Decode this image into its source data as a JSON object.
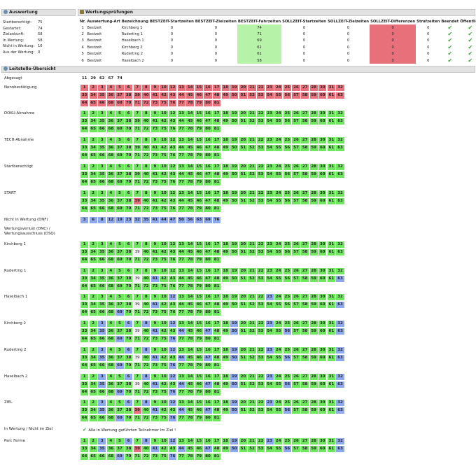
{
  "auswertung": {
    "title": "Auswertung",
    "items": [
      {
        "label": "Startberechtigt:",
        "value": "75"
      },
      {
        "label": "Gestartet:",
        "value": "74"
      },
      {
        "label": "Zielankunft:",
        "value": "58"
      },
      {
        "label": "In Wertung:",
        "value": "58"
      },
      {
        "label": "Nicht in Wertung:",
        "value": "16"
      },
      {
        "label": "Aus der Wertung:",
        "value": "0"
      }
    ]
  },
  "wertungspruefungen": {
    "title": "Wertungsprüfungen",
    "headers": [
      "Nr.",
      "Auswertung-Art",
      "Bezeichnung",
      "BESTZEIT-Startzeiten",
      "BESTZEIT-Zielzeiten",
      "BESTZEIT-Fahrzeiten",
      "SOLLZEIT-Startzeiten",
      "SOLLZEIT-Zielzeiten",
      "SOLLZEIT-Differenzen",
      "Strafzeiten",
      "Beendet",
      "Öffentlich"
    ],
    "rows": [
      {
        "nr": "1",
        "art": "Bestzeit",
        "name": "Kirchberg 1",
        "bs": "0",
        "bz": "0",
        "bf": "74",
        "ss": "0",
        "sz": "0",
        "sd": "0",
        "st": "0"
      },
      {
        "nr": "2",
        "art": "Bestzeit",
        "name": "Ruderting 1",
        "bs": "0",
        "bz": "0",
        "bf": "71",
        "ss": "0",
        "sz": "0",
        "sd": "0",
        "st": "0"
      },
      {
        "nr": "3",
        "art": "Bestzeit",
        "name": "Haselbach 1",
        "bs": "0",
        "bz": "0",
        "bf": "69",
        "ss": "0",
        "sz": "0",
        "sd": "0",
        "st": "0"
      },
      {
        "nr": "4",
        "art": "Bestzeit",
        "name": "Kirchberg 2",
        "bs": "0",
        "bz": "0",
        "bf": "61",
        "ss": "0",
        "sz": "0",
        "sd": "0",
        "st": "0"
      },
      {
        "nr": "5",
        "art": "Bestzeit",
        "name": "Ruderting 2",
        "bs": "0",
        "bz": "0",
        "bf": "61",
        "ss": "0",
        "sz": "0",
        "sd": "0",
        "st": "0"
      },
      {
        "nr": "6",
        "art": "Bestzeit",
        "name": "Haselbach 2",
        "bs": "0",
        "bz": "0",
        "bf": "58",
        "ss": "0",
        "sz": "0",
        "sd": "0",
        "st": "0"
      }
    ],
    "check_icon": "check-icon"
  },
  "leitstelle": {
    "title": "Leitstelle-Übersicht",
    "colors": {
      "green": "#6ee65e",
      "red": "#e8707a",
      "blue": "#8ea8ee",
      "cyan": "#7ad6ee",
      "white": "#f0f0f0"
    },
    "sections": [
      {
        "label": "Abgesagt",
        "y": 0,
        "cells": "11c 29c 62c 67c 74c"
      },
      {
        "label": "Nennbestätigung",
        "cells": "1r 2r 3r 4r 5r 6r 7r 8r 9r 10r 12r 13r 14r 15r 16r 17r 18r 19r 20r 21r 22r 23r 24r 25r 26r 27r 28r 30r 31r 32r 33r 34r 35r 36r 37r 38r 39r 40r 41r 42r 43r 44r 45r 46r 47r 48r 49r 50r 51r 52r 53r 54r 55r 56r 57r 58r 59r 60r 61r 63r 64r 65r 66r 68r 69r 70r 71r 72r 73r 75r 76r 77r 78r 79r 80r 81r"
      },
      {
        "label": "DOKU-Abnahme",
        "cells": "1g 2g 3g 4g 5g 6g 7g 8g 9g 10g 12g 13g 14g 15g 16g 17g 18g 19g 20g 21g 22g 23g 24g 25g 26g 27g 28g 30g 31g 32g 33g 34g 35g 36g 37g 38g 39g 40g 41g 42g 43g 44g 45g 46g 47g 48g 49g 50g 51g 52g 53g 54g 55g 56g 57g 58g 59g 60g 61g 63g 64g 65g 66g 68g 69g 70g 71g 72g 73g 75g 76g 77g 78g 79g 80g 81g"
      },
      {
        "label": "TECH-Abnahme",
        "cells": "1g 2g 3g 4g 5g 6g 7g 8g 9g 10g 12g 13g 14g 15g 16g 17g 18g 19g 20g 21g 22g 23g 24g 25g 26g 27g 28g 30g 31g 32g 33g 34g 35g 36g 37g 38g 39g 40g 41g 42g 43g 44g 45g 46g 47g 48g 49g 50g 51g 52g 53g 54g 55g 56g 57g 58g 59g 60g 61g 63g 64g 65g 66g 68g 69g 70g 71g 72g 73g 75g 76g 77g 78g 79g 80g 81g"
      },
      {
        "label": "Startberechtigt",
        "cells": "1g 2g 3g 4g 5g 6g 7g 8g 9g 10g 12g 13g 14g 15g 16g 17g 18g 19g 20g 21g 22g 23g 24g 25g 26g 27g 28g 30g 31g 32g 33g 34g 35g 36g 37g 38g 39g 40g 41g 42g 43g 44g 45g 46g 47g 48g 49g 50g 51g 52g 53g 54g 55g 56g 57g 58g 59g 60g 61g 63g 64g 65g 66g 68g 69g 70g 71g 72g 73g 75g 76g 77g 78g 79g 80g 81g"
      },
      {
        "label": "START",
        "cells": "1g 2g 3g 4g 5g 6g 7g 8g 9g 10g 12g 13g 14g 15g 16g 17g 18g 19g 20g 21g 22g 23g 24g 25g 26g 27g 28g 30g 31g 32g 33g 34g 35g 36g 37g 38g 39r 40g 41g 42g 43g 44g 45g 46g 47g 48g 49g 50g 51g 52g 53g 54g 55g 56g 57g 58g 59g 60g 61g 63g 64g 65g 66g 68g 69g 70g 71g 72g 73g 75g 76g 77g 78g 79g 80g 81g"
      },
      {
        "label": "Nicht in Wertung (DNF)",
        "cells": "3b 6b 8b 12b 19b 23b 32b 35b 41b 44b 47b 50b 56b 63b 69b 76b"
      },
      {
        "label": "Wertungsverlust (DNC) / Wertungsausschluss (DSQ)",
        "cells": ""
      },
      {
        "label": "Kirchberg 1",
        "cells": "1g 2g 3g 4g 5g 6g 7g 8g 9g 10g 12g 13g 14g 15g 16g 17g 18g 19g 20g 21g 22g 23g 24g 25g 26g 27g 28g 30g 31g 32g 33g 34g 35g 36g 37g 38g 39w 40g 41g 42g 43g 44g 45g 46g 47g 48g 49g 50g 51g 52g 53g 54g 55g 56g 57g 58g 59g 60g 61g 63g 64g 65g 66g 68g 69g 70g 71g 72g 73g 75g 76g 77g 78g 79g 80g 81g"
      },
      {
        "label": "Ruderting 1",
        "cells": "1g 2g 3g 4g 5g 6g 7g 8g 9g 10g 12g 13g 14g 15g 16g 17g 18g 19g 20g 21g 22g 23g 24g 25g 26g 27g 28g 30g 31g 32g 33g 34g 35g 36g 37g 38g 39w 40g 41b 42g 43g 44g 45g 46g 47g 48g 49g 50g 51g 52g 53g 54g 55g 56g 57g 58g 59g 60g 61g 63b 64g 65g 66g 68g 69g 70g 71g 72g 73g 75g 76g 77g 78g 79g 80g 81g"
      },
      {
        "label": "Haselbach 1",
        "cells": "1g 2g 3g 4g 5g 6g 7g 8g 9g 10g 12b 13g 14g 15g 16g 17g 18g 19g 20g 21g 22g 23b 24g 25g 26g 27g 28g 30g 31g 32g 33g 34g 35g 36g 37g 38g 39w 40g 41b 42g 43g 44g 45g 46g 47g 48g 49g 50g 51g 52g 53g 54g 55g 56g 57g 58g 59g 60g 61g 63b 64g 65g 66g 68g 69b 70g 71g 72g 73g 75g 76g 77g 78g 79g 80g 81g"
      },
      {
        "label": "Kirchberg 2",
        "cells": "1g 2g 3b 4g 5g 6b 7g 8b 9g 10g 12b 13g 14g 15g 16g 17g 18g 19b 20g 21g 22g 23b 24g 25g 26g 27g 28g 30g 31g 32b 33g 34g 35b 36g 37g 38g 39w 40g 41b 42g 43g 44b 45g 46g 47b 48g 49g 50b 51g 52g 53g 54g 55g 56b 57g 58g 59g 60g 61g 63b 64g 65g 66g 68g 69b 70g 71g 72g 73g 75g 76b 77g 78g 79g 80g 81g"
      },
      {
        "label": "Ruderting 2",
        "cells": "1g 2g 3b 4g 5g 6b 7g 8b 9g 10g 12b 13g 14g 15g 16g 17g 18g 19b 20g 21g 22g 23b 24g 25g 26g 27g 28g 30g 31g 32b 33g 34g 35b 36g 37g 38g 39w 40g 41b 42g 43g 44b 45g 46g 47b 48g 49g 50b 51g 52g 53g 54g 55g 56b 57g 58g 59g 60g 61g 63b 64g 65g 66g 68g 69b 70g 71g 72g 73g 75g 76b 77g 78g 79g 80g 81g"
      },
      {
        "label": "Haselbach 2",
        "cells": "1g 2g 3b 4g 5g 6b 7g 8b 9g 10g 12b 13g 14g 15g 16g 17g 18g 19b 20g 21g 22g 23b 24g 25g 26g 27g 28g 30g 31g 32b 33g 34g 35b 36g 37g 38g 39w 40g 41b 42g 43g 44b 45g 46g 47b 48g 49g 50b 51g 52g 53g 54g 55g 56b 57g 58g 59g 60g 61g 63b 64g 65g 66g 68g 69b 70g 71g 72g 73g 75g 76b 77g 78g 79g 80g 81g"
      },
      {
        "label": "ZIEL",
        "cells": "1g 2g 3b 4g 5g 6b 7g 8b 9g 10g 12b 13g 14g 15g 16g 17g 18g 19b 20g 21g 22g 23b 24g 25g 26g 27g 28g 30g 31g 32b 33g 34g 35b 36g 37g 38g 39r 40g 41b 42g 43g 44b 45g 46g 47b 48g 49g 50b 51g 52g 53g 54g 55g 56b 57g 58g 59g 60g 61g 63b 64g 65g 66g 68g 69b 70g 71g 72g 73g 75g 76b 77g 78g 79g 80g 81g"
      },
      {
        "label": "In Wertung / Nicht im Ziel",
        "cells": "",
        "note": "Alle in Wertung geführten Teilnehmer im Ziel !"
      },
      {
        "label": "Parc Ferme",
        "cells": "1g 2g 3b 4g 5g 6b 7g 8b 9g 10g 12b 13g 14g 15g 16g 17g 18g 19b 20g 21g 22g 23b 24g 25g 26g 27g 28g 30g 31g 32b 33g 34g 35b 36g 37g 38g 39r 40g 41b 42g 43g 44b 45g 46g 47b 48g 49g 50b 51g 52g 53g 54g 55g 56b 57g 58g 59g 60g 61g 63b 64g 65g 66g 68g 69b 70g 71g 72g 73g 75g 76b 77g 78g 79g 80g 81g"
      }
    ]
  }
}
